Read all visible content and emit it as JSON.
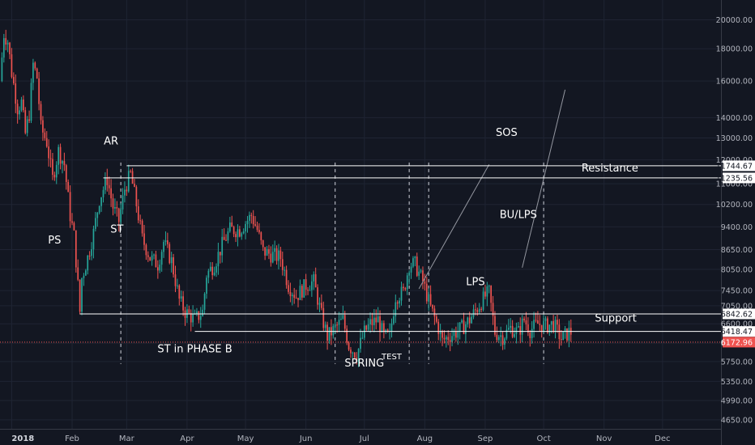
{
  "chart_data": {
    "type": "candlestick",
    "y_scale": "log",
    "ylim": [
      4500,
      21500
    ],
    "xlim": [
      "2017-12-26",
      "2018-12-31"
    ],
    "grid": true,
    "colors": {
      "background": "#131722",
      "up": "#26a69a",
      "down": "#ef5350",
      "grid": "#1f2433",
      "level_line": "#ffffff",
      "current_price": "#ef5350",
      "trend_line": "#9598a1"
    },
    "y_ticks": [
      4650,
      4990,
      5350,
      5750,
      6150,
      6600,
      7050,
      7450,
      8050,
      8650,
      9400,
      10200,
      11000,
      12000,
      13000,
      14000,
      16000,
      18000,
      20000
    ],
    "y_tick_labels": [
      "4650.00",
      "4990.00",
      "5350.00",
      "5750.00",
      "6150.00",
      "6600.00",
      "7050.00",
      "7450.00",
      "8050.00",
      "8650.00",
      "9400.00",
      "10200.00",
      "11000.00",
      "12000.00",
      "13000.00",
      "14000.00",
      "16000.00",
      "18000.00",
      "20000.00"
    ],
    "x_ticks": [
      {
        "date": "2018-01-01",
        "label": "2018",
        "bold": true
      },
      {
        "date": "2018-02-01",
        "label": "Feb"
      },
      {
        "date": "2018-03-01",
        "label": "Mar"
      },
      {
        "date": "2018-04-01",
        "label": "Apr"
      },
      {
        "date": "2018-05-01",
        "label": "May"
      },
      {
        "date": "2018-06-01",
        "label": "Jun"
      },
      {
        "date": "2018-07-01",
        "label": "Jul"
      },
      {
        "date": "2018-08-01",
        "label": "Aug"
      },
      {
        "date": "2018-09-01",
        "label": "Sep"
      },
      {
        "date": "2018-10-01",
        "label": "Oct"
      },
      {
        "date": "2018-11-01",
        "label": "Nov"
      },
      {
        "date": "2018-12-01",
        "label": "Dec"
      }
    ],
    "price_path": [
      {
        "date": "2017-12-27",
        "price": 16000
      },
      {
        "date": "2017-12-29",
        "price": 19000
      },
      {
        "date": "2017-12-31",
        "price": 18500
      },
      {
        "date": "2018-01-02",
        "price": 16500
      },
      {
        "date": "2018-01-05",
        "price": 14500
      },
      {
        "date": "2018-01-07",
        "price": 14800
      },
      {
        "date": "2018-01-09",
        "price": 13200
      },
      {
        "date": "2018-01-11",
        "price": 14200
      },
      {
        "date": "2018-01-13",
        "price": 17000
      },
      {
        "date": "2018-01-15",
        "price": 16200
      },
      {
        "date": "2018-01-17",
        "price": 13500
      },
      {
        "date": "2018-01-20",
        "price": 12800
      },
      {
        "date": "2018-01-23",
        "price": 11200
      },
      {
        "date": "2018-01-26",
        "price": 12400
      },
      {
        "date": "2018-01-29",
        "price": 11800
      },
      {
        "date": "2018-02-01",
        "price": 9800
      },
      {
        "date": "2018-02-03",
        "price": 9100
      },
      {
        "date": "2018-02-05",
        "price": 7600
      },
      {
        "date": "2018-02-06",
        "price": 6900
      },
      {
        "date": "2018-02-07",
        "price": 7800
      },
      {
        "date": "2018-02-10",
        "price": 8400
      },
      {
        "date": "2018-02-13",
        "price": 9200
      },
      {
        "date": "2018-02-16",
        "price": 10400
      },
      {
        "date": "2018-02-20",
        "price": 11200
      },
      {
        "date": "2018-02-23",
        "price": 10100
      },
      {
        "date": "2018-02-26",
        "price": 9600
      },
      {
        "date": "2018-03-01",
        "price": 10800
      },
      {
        "date": "2018-03-04",
        "price": 11400
      },
      {
        "date": "2018-03-07",
        "price": 10200
      },
      {
        "date": "2018-03-10",
        "price": 9000
      },
      {
        "date": "2018-03-14",
        "price": 8400
      },
      {
        "date": "2018-03-18",
        "price": 8200
      },
      {
        "date": "2018-03-21",
        "price": 8900
      },
      {
        "date": "2018-03-25",
        "price": 8300
      },
      {
        "date": "2018-03-29",
        "price": 7200
      },
      {
        "date": "2018-04-01",
        "price": 6900
      },
      {
        "date": "2018-04-06",
        "price": 6700
      },
      {
        "date": "2018-04-10",
        "price": 6900
      },
      {
        "date": "2018-04-12",
        "price": 7900
      },
      {
        "date": "2018-04-16",
        "price": 8200
      },
      {
        "date": "2018-04-20",
        "price": 8800
      },
      {
        "date": "2018-04-24",
        "price": 9300
      },
      {
        "date": "2018-04-29",
        "price": 9300
      },
      {
        "date": "2018-05-05",
        "price": 9800
      },
      {
        "date": "2018-05-08",
        "price": 9300
      },
      {
        "date": "2018-05-11",
        "price": 8600
      },
      {
        "date": "2018-05-15",
        "price": 8500
      },
      {
        "date": "2018-05-20",
        "price": 8400
      },
      {
        "date": "2018-05-24",
        "price": 7600
      },
      {
        "date": "2018-05-28",
        "price": 7300
      },
      {
        "date": "2018-06-02",
        "price": 7600
      },
      {
        "date": "2018-06-06",
        "price": 7700
      },
      {
        "date": "2018-06-10",
        "price": 6800
      },
      {
        "date": "2018-06-13",
        "price": 6300
      },
      {
        "date": "2018-06-17",
        "price": 6500
      },
      {
        "date": "2018-06-21",
        "price": 6700
      },
      {
        "date": "2018-06-24",
        "price": 6100
      },
      {
        "date": "2018-06-28",
        "price": 5900
      },
      {
        "date": "2018-07-02",
        "price": 6400
      },
      {
        "date": "2018-07-05",
        "price": 6600
      },
      {
        "date": "2018-07-09",
        "price": 6700
      },
      {
        "date": "2018-07-12",
        "price": 6300
      },
      {
        "date": "2018-07-15",
        "price": 6300
      },
      {
        "date": "2018-07-18",
        "price": 7300
      },
      {
        "date": "2018-07-22",
        "price": 7400
      },
      {
        "date": "2018-07-25",
        "price": 8200
      },
      {
        "date": "2018-07-28",
        "price": 8200
      },
      {
        "date": "2018-08-01",
        "price": 7700
      },
      {
        "date": "2018-08-05",
        "price": 7000
      },
      {
        "date": "2018-08-09",
        "price": 6500
      },
      {
        "date": "2018-08-11",
        "price": 6200
      },
      {
        "date": "2018-08-14",
        "price": 6300
      },
      {
        "date": "2018-08-18",
        "price": 6400
      },
      {
        "date": "2018-08-21",
        "price": 6500
      },
      {
        "date": "2018-08-25",
        "price": 6700
      },
      {
        "date": "2018-08-29",
        "price": 7000
      },
      {
        "date": "2018-09-02",
        "price": 7300
      },
      {
        "date": "2018-09-04",
        "price": 7400
      },
      {
        "date": "2018-09-07",
        "price": 6400
      },
      {
        "date": "2018-09-11",
        "price": 6300
      },
      {
        "date": "2018-09-15",
        "price": 6500
      },
      {
        "date": "2018-09-19",
        "price": 6400
      },
      {
        "date": "2018-09-22",
        "price": 6700
      },
      {
        "date": "2018-09-25",
        "price": 6450
      },
      {
        "date": "2018-09-29",
        "price": 6600
      },
      {
        "date": "2018-10-03",
        "price": 6550
      },
      {
        "date": "2018-10-07",
        "price": 6600
      },
      {
        "date": "2018-10-11",
        "price": 6250
      },
      {
        "date": "2018-10-15",
        "price": 6400
      }
    ],
    "levels": [
      {
        "name": "Resistance",
        "price": 11744.67,
        "label": "11744.67",
        "x_from": "2018-03-01",
        "x_to": "2018-12-31",
        "style": "box"
      },
      {
        "name": "Resistance",
        "price": 11235.56,
        "label": "11235.56",
        "x_from": "2018-02-17",
        "x_to": "2018-12-31",
        "style": "box"
      },
      {
        "name": "Support",
        "price": 6842.62,
        "label": "6842.62",
        "x_from": "2018-02-05",
        "x_to": "2018-12-31",
        "style": "box"
      },
      {
        "name": "Support",
        "price": 6418.47,
        "label": "6418.47",
        "x_from": "2018-04-05",
        "x_to": "2018-12-31",
        "style": "box"
      },
      {
        "name": "current",
        "price": 6172.96,
        "label": "6172.96",
        "x_from": "2017-12-26",
        "x_to": "2018-12-31",
        "style": "dotted-red"
      }
    ],
    "vertical_markers": [
      "2018-02-26",
      "2018-06-16",
      "2018-07-24",
      "2018-08-03",
      "2018-10-01"
    ],
    "trend_lines": [
      {
        "from": {
          "date": "2018-07-29",
          "price": 7500
        },
        "to": {
          "date": "2018-09-03",
          "price": 11800
        }
      },
      {
        "from": {
          "date": "2018-09-20",
          "price": 8100
        },
        "to": {
          "date": "2018-10-12",
          "price": 15500
        }
      }
    ],
    "annotations": [
      {
        "text": "PS",
        "date": "2018-01-23",
        "price": 8850,
        "size": "large"
      },
      {
        "text": "AR",
        "date": "2018-02-21",
        "price": 12700,
        "size": "large"
      },
      {
        "text": "ST",
        "date": "2018-02-24",
        "price": 9200,
        "size": "large"
      },
      {
        "text": "ST in PHASE B",
        "date": "2018-04-05",
        "price": 5950,
        "size": "large"
      },
      {
        "text": "SPRING",
        "date": "2018-07-01",
        "price": 5650,
        "size": "large"
      },
      {
        "text": "TEST",
        "date": "2018-07-15",
        "price": 5800,
        "size": "small"
      },
      {
        "text": "LPS",
        "date": "2018-08-27",
        "price": 7600,
        "size": "large"
      },
      {
        "text": "SOS",
        "date": "2018-09-12",
        "price": 13100,
        "size": "large"
      },
      {
        "text": "BU/LPS",
        "date": "2018-09-18",
        "price": 9700,
        "size": "large"
      },
      {
        "text": "Resistance",
        "date": "2018-11-04",
        "price": 11500,
        "size": "large"
      },
      {
        "text": "Support",
        "date": "2018-11-07",
        "price": 6650,
        "size": "large"
      }
    ]
  }
}
